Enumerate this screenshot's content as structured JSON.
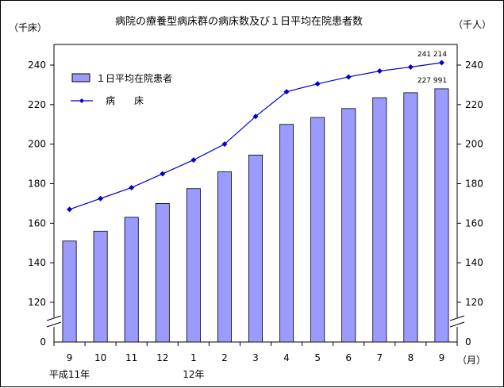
{
  "chart_data": {
    "type": "bar+line",
    "title": "病院の療養型病床群の病床数及び１日平均在院患者数",
    "left_axis_unit": "（千床）",
    "right_axis_unit": "（千人）",
    "x_unit": "（月）",
    "categories": [
      "9",
      "10",
      "11",
      "12",
      "1",
      "2",
      "3",
      "4",
      "5",
      "6",
      "7",
      "8",
      "9"
    ],
    "era_labels": [
      {
        "category_index": 0,
        "text": "平成11年"
      },
      {
        "category_index": 4,
        "text": "12年"
      }
    ],
    "y_ticks": [
      120,
      140,
      160,
      180,
      200,
      220,
      240
    ],
    "y_zero_label": "0",
    "ylim": [
      110,
      250
    ],
    "axis_break": true,
    "series": [
      {
        "name": "１日平均在院患者",
        "type": "bar",
        "color": "#9a9aff",
        "values": [
          151,
          156,
          163,
          170,
          177.5,
          186,
          194.5,
          210,
          213.5,
          218,
          223.5,
          226,
          227.991
        ]
      },
      {
        "name": "病　　床",
        "type": "line",
        "color": "#0000cc",
        "values": [
          167,
          172.5,
          178,
          185,
          192,
          200,
          214,
          226.5,
          230.5,
          234,
          237,
          239,
          241.214
        ]
      }
    ],
    "annotations": [
      {
        "series": "病　　床",
        "category_index": 12,
        "text": "241 214"
      },
      {
        "series": "１日平均在院患者",
        "category_index": 12,
        "text": "227 991"
      }
    ],
    "legend_position": "top-left",
    "grid": false
  }
}
